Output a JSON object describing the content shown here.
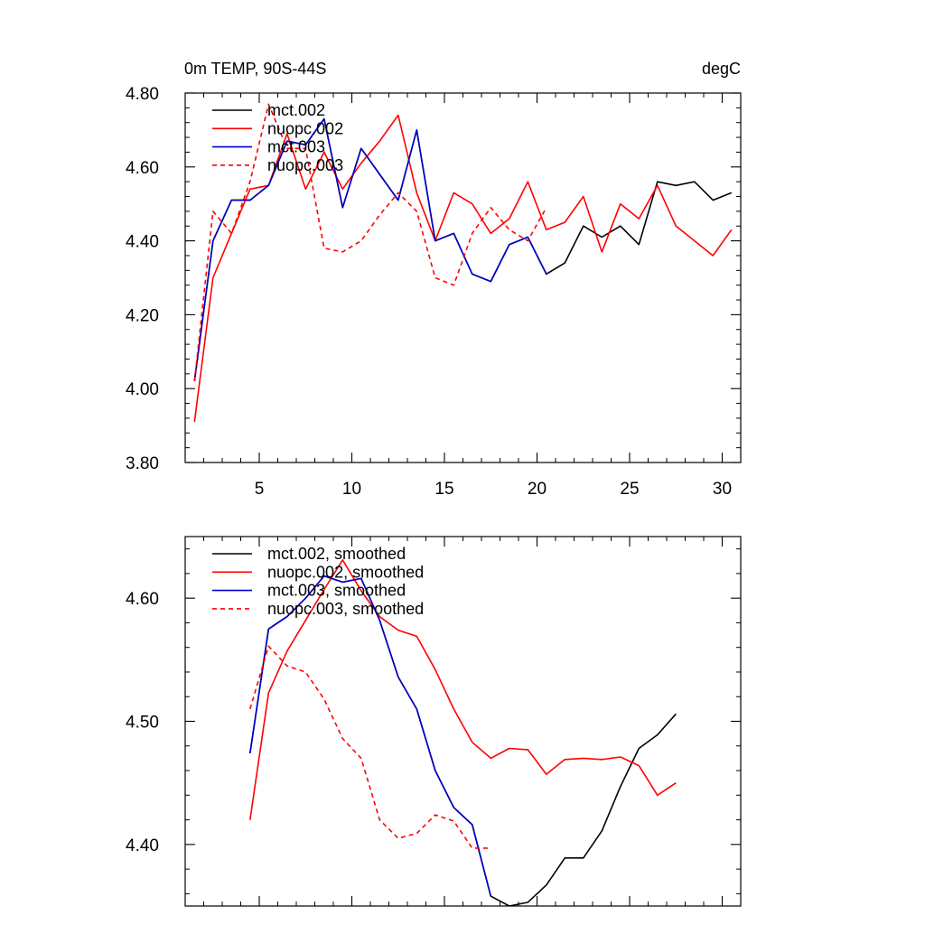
{
  "figure": {
    "title_left": "0m TEMP, 90S-44S",
    "title_right": "degC"
  },
  "chart_data": [
    {
      "type": "line",
      "title": "0m TEMP, 90S-44S",
      "units": "degC",
      "xlabel": "",
      "ylabel": "",
      "xlim": [
        1,
        31
      ],
      "ylim": [
        3.8,
        4.8
      ],
      "xticks": [
        5,
        10,
        15,
        20,
        25,
        30
      ],
      "xtick_labels": [
        "5",
        "10",
        "15",
        "20",
        "25",
        "30"
      ],
      "yticks": [
        3.8,
        4.0,
        4.2,
        4.4,
        4.6,
        4.8
      ],
      "ytick_labels": [
        "3.80",
        "4.00",
        "4.20",
        "4.40",
        "4.60",
        "4.80"
      ],
      "legend_position": "top-left",
      "series": [
        {
          "name": "mct.002",
          "color": "#000000",
          "dash": "solid",
          "x": [
            1.5,
            2.5,
            3.5,
            4.5,
            5.5,
            6.5,
            7.5,
            8.5,
            9.5,
            10.5,
            11.5,
            12.5,
            13.5,
            14.5,
            15.5,
            16.5,
            17.5,
            18.5,
            19.5,
            20.5,
            21.5,
            22.5,
            23.5,
            24.5,
            25.5,
            26.5,
            27.5,
            28.5,
            29.5,
            30.5
          ],
          "values": [
            4.02,
            4.4,
            4.51,
            4.51,
            4.55,
            4.67,
            4.66,
            4.73,
            4.49,
            4.65,
            4.58,
            4.51,
            4.7,
            4.4,
            4.42,
            4.31,
            4.29,
            4.39,
            4.41,
            4.31,
            4.34,
            4.44,
            4.41,
            4.44,
            4.39,
            4.56,
            4.55,
            4.56,
            4.51,
            4.53
          ]
        },
        {
          "name": "nuopc.002",
          "color": "#ff0000",
          "dash": "solid",
          "x": [
            1.5,
            2.5,
            3.5,
            4.5,
            5.5,
            6.5,
            7.5,
            8.5,
            9.5,
            10.5,
            11.5,
            12.5,
            13.5,
            14.5,
            15.5,
            16.5,
            17.5,
            18.5,
            19.5,
            20.5,
            21.5,
            22.5,
            23.5,
            24.5,
            25.5,
            26.5,
            27.5,
            28.5,
            29.5,
            30.5
          ],
          "values": [
            3.91,
            4.3,
            4.42,
            4.54,
            4.55,
            4.69,
            4.54,
            4.64,
            4.54,
            4.61,
            4.67,
            4.74,
            4.53,
            4.4,
            4.53,
            4.5,
            4.42,
            4.46,
            4.56,
            4.43,
            4.45,
            4.52,
            4.37,
            4.5,
            4.46,
            4.55,
            4.44,
            4.4,
            4.36,
            4.43
          ]
        },
        {
          "name": "mct.003",
          "color": "#0000cc",
          "dash": "solid",
          "x": [
            1.5,
            2.5,
            3.5,
            4.5,
            5.5,
            6.5,
            7.5,
            8.5,
            9.5,
            10.5,
            11.5,
            12.5,
            13.5,
            14.5,
            15.5,
            16.5,
            17.5,
            18.5,
            19.5,
            20.5
          ],
          "values": [
            4.02,
            4.4,
            4.51,
            4.51,
            4.55,
            4.67,
            4.66,
            4.73,
            4.49,
            4.65,
            4.58,
            4.51,
            4.7,
            4.4,
            4.42,
            4.31,
            4.29,
            4.39,
            4.41,
            4.31
          ]
        },
        {
          "name": "nuopc.003",
          "color": "#ff0000",
          "dash": "dashed",
          "x": [
            1.5,
            2.5,
            3.5,
            4.5,
            5.5,
            6.5,
            7.5,
            8.5,
            9.5,
            10.5,
            11.5,
            12.5,
            13.5,
            14.5,
            15.5,
            16.5,
            17.5,
            18.5,
            19.5,
            20.5
          ],
          "values": [
            4.02,
            4.48,
            4.42,
            4.56,
            4.77,
            4.65,
            4.65,
            4.38,
            4.37,
            4.4,
            4.47,
            4.53,
            4.48,
            4.3,
            4.28,
            4.42,
            4.49,
            4.43,
            4.4,
            4.49
          ]
        }
      ]
    },
    {
      "type": "line",
      "title": "",
      "xlabel": "",
      "ylabel": "",
      "xlim": [
        1,
        31
      ],
      "ylim": [
        4.35,
        4.65
      ],
      "xticks": [
        5,
        10,
        15,
        20,
        25,
        30
      ],
      "xtick_labels": [],
      "yticks": [
        4.4,
        4.5,
        4.6
      ],
      "ytick_labels": [
        "4.40",
        "4.50",
        "4.60"
      ],
      "legend_position": "top-left",
      "series": [
        {
          "name": "mct.002, smoothed",
          "color": "#000000",
          "dash": "solid",
          "x": [
            4.5,
            5.5,
            6.5,
            7.5,
            8.5,
            9.5,
            10.5,
            11.5,
            12.5,
            13.5,
            14.5,
            15.5,
            16.5,
            17.5,
            18.5,
            19.5,
            20.5,
            21.5,
            22.5,
            23.5,
            24.5,
            25.5,
            26.5,
            27.5
          ],
          "values": [
            4.474,
            4.575,
            4.585,
            4.6,
            4.618,
            4.613,
            4.616,
            4.582,
            4.536,
            4.51,
            4.46,
            4.43,
            4.416,
            4.358,
            4.35,
            4.353,
            4.367,
            4.389,
            4.389,
            4.411,
            4.447,
            4.478,
            4.489,
            4.506
          ]
        },
        {
          "name": "nuopc.002, smoothed",
          "color": "#ff0000",
          "dash": "solid",
          "x": [
            4.5,
            5.5,
            6.5,
            7.5,
            8.5,
            9.5,
            10.5,
            11.5,
            12.5,
            13.5,
            14.5,
            15.5,
            16.5,
            17.5,
            18.5,
            19.5,
            20.5,
            21.5,
            22.5,
            23.5,
            24.5,
            25.5,
            26.5,
            27.5
          ],
          "values": [
            4.42,
            4.523,
            4.557,
            4.582,
            4.607,
            4.631,
            4.606,
            4.585,
            4.574,
            4.569,
            4.542,
            4.51,
            4.483,
            4.47,
            4.478,
            4.477,
            4.457,
            4.469,
            4.47,
            4.469,
            4.471,
            4.464,
            4.44,
            4.45
          ]
        },
        {
          "name": "mct.003, smoothed",
          "color": "#0000cc",
          "dash": "solid",
          "x": [
            4.5,
            5.5,
            6.5,
            7.5,
            8.5,
            9.5,
            10.5,
            11.5,
            12.5,
            13.5,
            14.5,
            15.5,
            16.5,
            17.5
          ],
          "values": [
            4.474,
            4.575,
            4.585,
            4.6,
            4.618,
            4.613,
            4.616,
            4.582,
            4.536,
            4.51,
            4.46,
            4.43,
            4.416,
            4.358
          ]
        },
        {
          "name": "nuopc.003, smoothed",
          "color": "#ff0000",
          "dash": "dashed",
          "x": [
            4.5,
            5.5,
            6.5,
            7.5,
            8.5,
            9.5,
            10.5,
            11.5,
            12.5,
            13.5,
            14.5,
            15.5,
            16.5,
            17.5
          ],
          "values": [
            4.51,
            4.561,
            4.545,
            4.54,
            4.518,
            4.486,
            4.47,
            4.42,
            4.405,
            4.409,
            4.424,
            4.419,
            4.397,
            4.397
          ]
        }
      ]
    }
  ]
}
